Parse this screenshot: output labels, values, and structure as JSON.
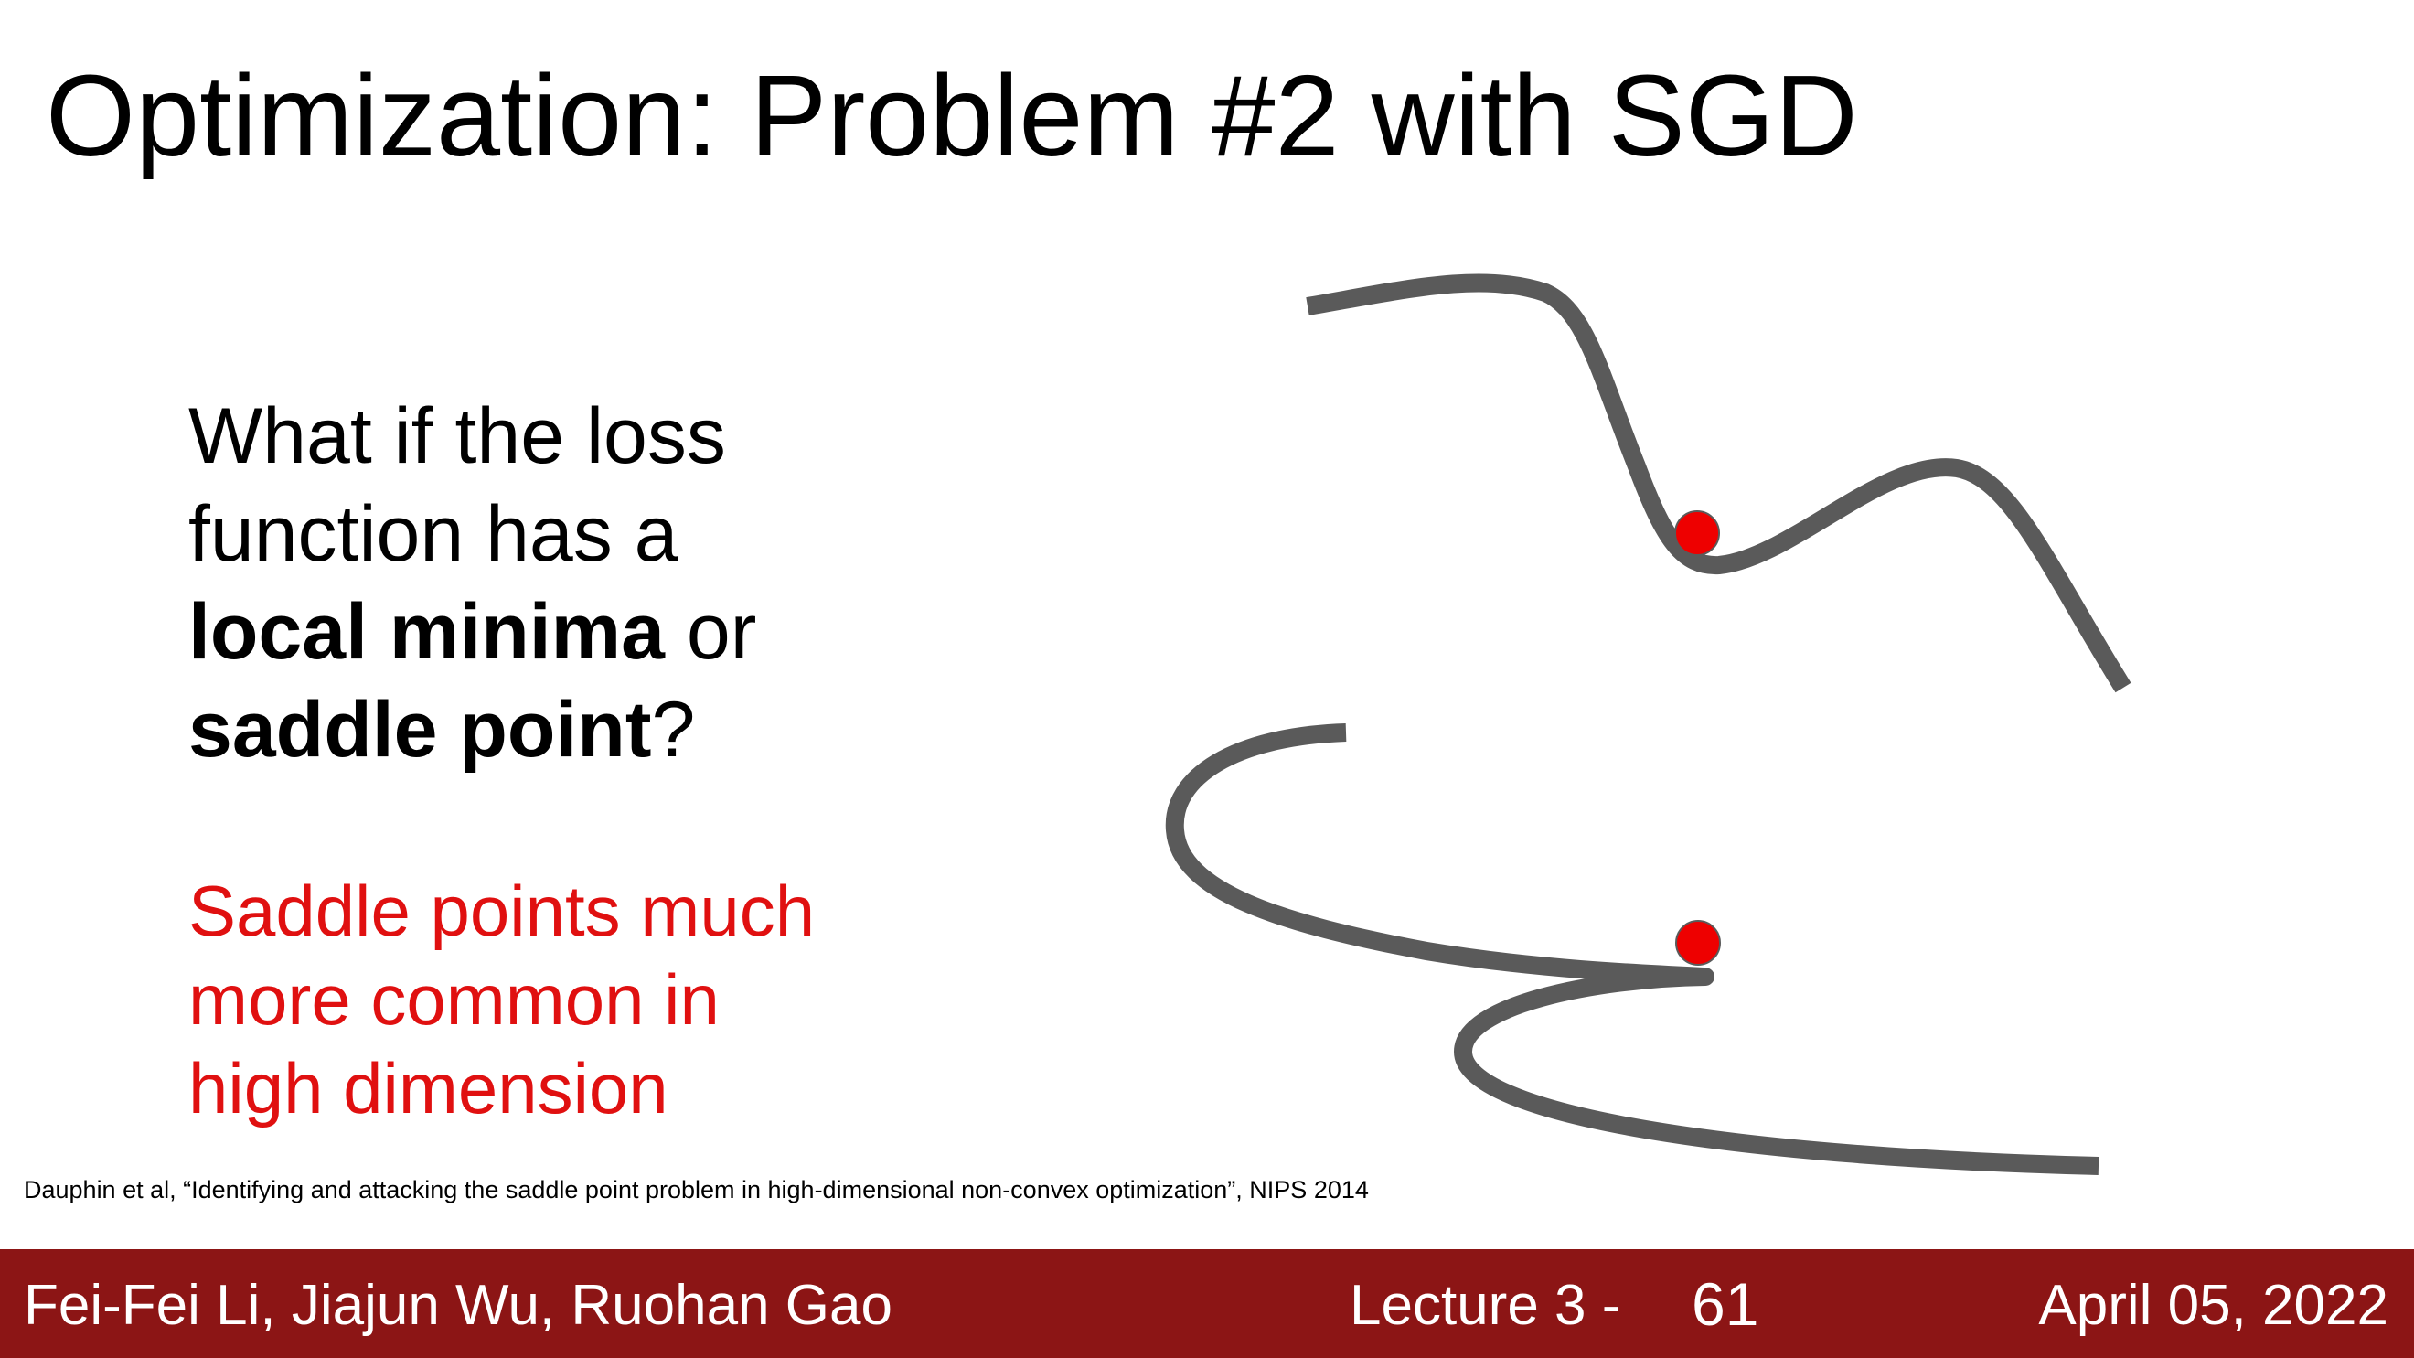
{
  "title": "Optimization: Problem #2 with SGD",
  "question": {
    "line1": "What if the loss",
    "line2": "function has a",
    "bold1": "local minima",
    "after_bold1": " or",
    "bold2": "saddle point",
    "after_bold2": "?"
  },
  "note": {
    "line1": "Saddle points much",
    "line2": "more common in",
    "line3": "high dimension"
  },
  "citation": "Dauphin et al, “Identifying and attacking the saddle point problem in high-dimensional non-convex optimization”, NIPS 2014",
  "footer": {
    "authors": "Fei-Fei Li, Jiajun Wu, Ruohan Gao",
    "lecture": "Lecture 3 -",
    "page": "61",
    "date": "April 05, 2022"
  },
  "colors": {
    "curve": "#5a5a5a",
    "ball": "#ee0000",
    "footer_bg": "#8c1515",
    "note_text": "#e01010"
  }
}
